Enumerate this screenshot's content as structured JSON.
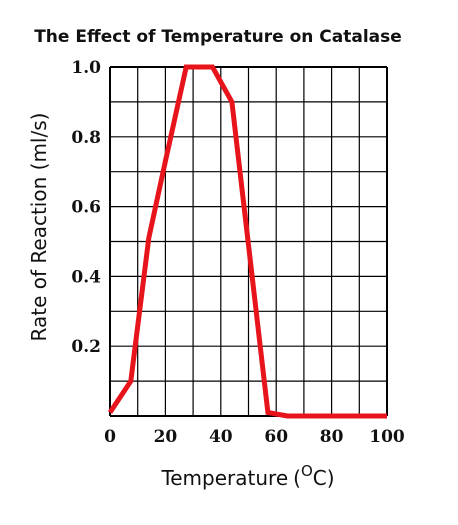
{
  "chart_data": {
    "type": "line",
    "title": "The Effect of Temperature on Catalase",
    "xlabel": "Temperature",
    "xlabel_unit_open": "(",
    "xlabel_unit_degree": "O",
    "xlabel_unit_close": "C)",
    "ylabel": "Rate of Reaction (ml/s)",
    "xlim": [
      0,
      100
    ],
    "ylim": [
      0,
      1.0
    ],
    "grid": true,
    "x_ticks": [
      {
        "value": 0,
        "label": "0"
      },
      {
        "value": 20,
        "label": "20"
      },
      {
        "value": 40,
        "label": "40"
      },
      {
        "value": 60,
        "label": "60"
      },
      {
        "value": 80,
        "label": "80"
      },
      {
        "value": 100,
        "label": "100"
      }
    ],
    "y_ticks": [
      {
        "value": 0.2,
        "label": "0.2"
      },
      {
        "value": 0.4,
        "label": "0.4"
      },
      {
        "value": 0.6,
        "label": "0.6"
      },
      {
        "value": 0.8,
        "label": "0.8"
      },
      {
        "value": 1.0,
        "label": "1.0"
      }
    ],
    "line_color": "#e8141c",
    "series": [
      {
        "x": [
          0,
          7.5,
          14,
          20,
          27.5,
          37,
          44,
          57,
          64,
          100
        ],
        "y": [
          0.01,
          0.1,
          0.51,
          0.73,
          1.0,
          1.0,
          0.9,
          0.01,
          0.0,
          0.0
        ]
      }
    ]
  }
}
